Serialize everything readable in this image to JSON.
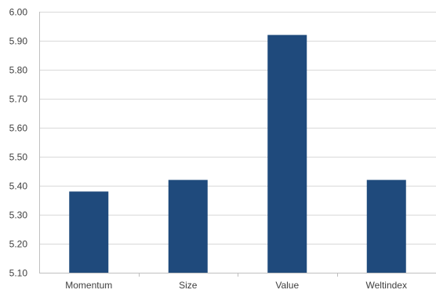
{
  "chart_data": {
    "type": "bar",
    "title": "",
    "xlabel": "",
    "ylabel": "",
    "categories": [
      "Momentum",
      "Size",
      "Value",
      "Weltindex"
    ],
    "values": [
      5.38,
      5.42,
      5.92,
      5.42
    ],
    "ylim": [
      5.1,
      6.0
    ],
    "yticks": [
      "5.10",
      "5.20",
      "5.30",
      "5.40",
      "5.50",
      "5.60",
      "5.70",
      "5.80",
      "5.90",
      "6.00"
    ],
    "grid": true,
    "legend": "none",
    "colors": {
      "bar": "#1f4a7c",
      "grid": "#d9d9d9",
      "axis": "#bfbfbf",
      "text": "#404040"
    }
  }
}
